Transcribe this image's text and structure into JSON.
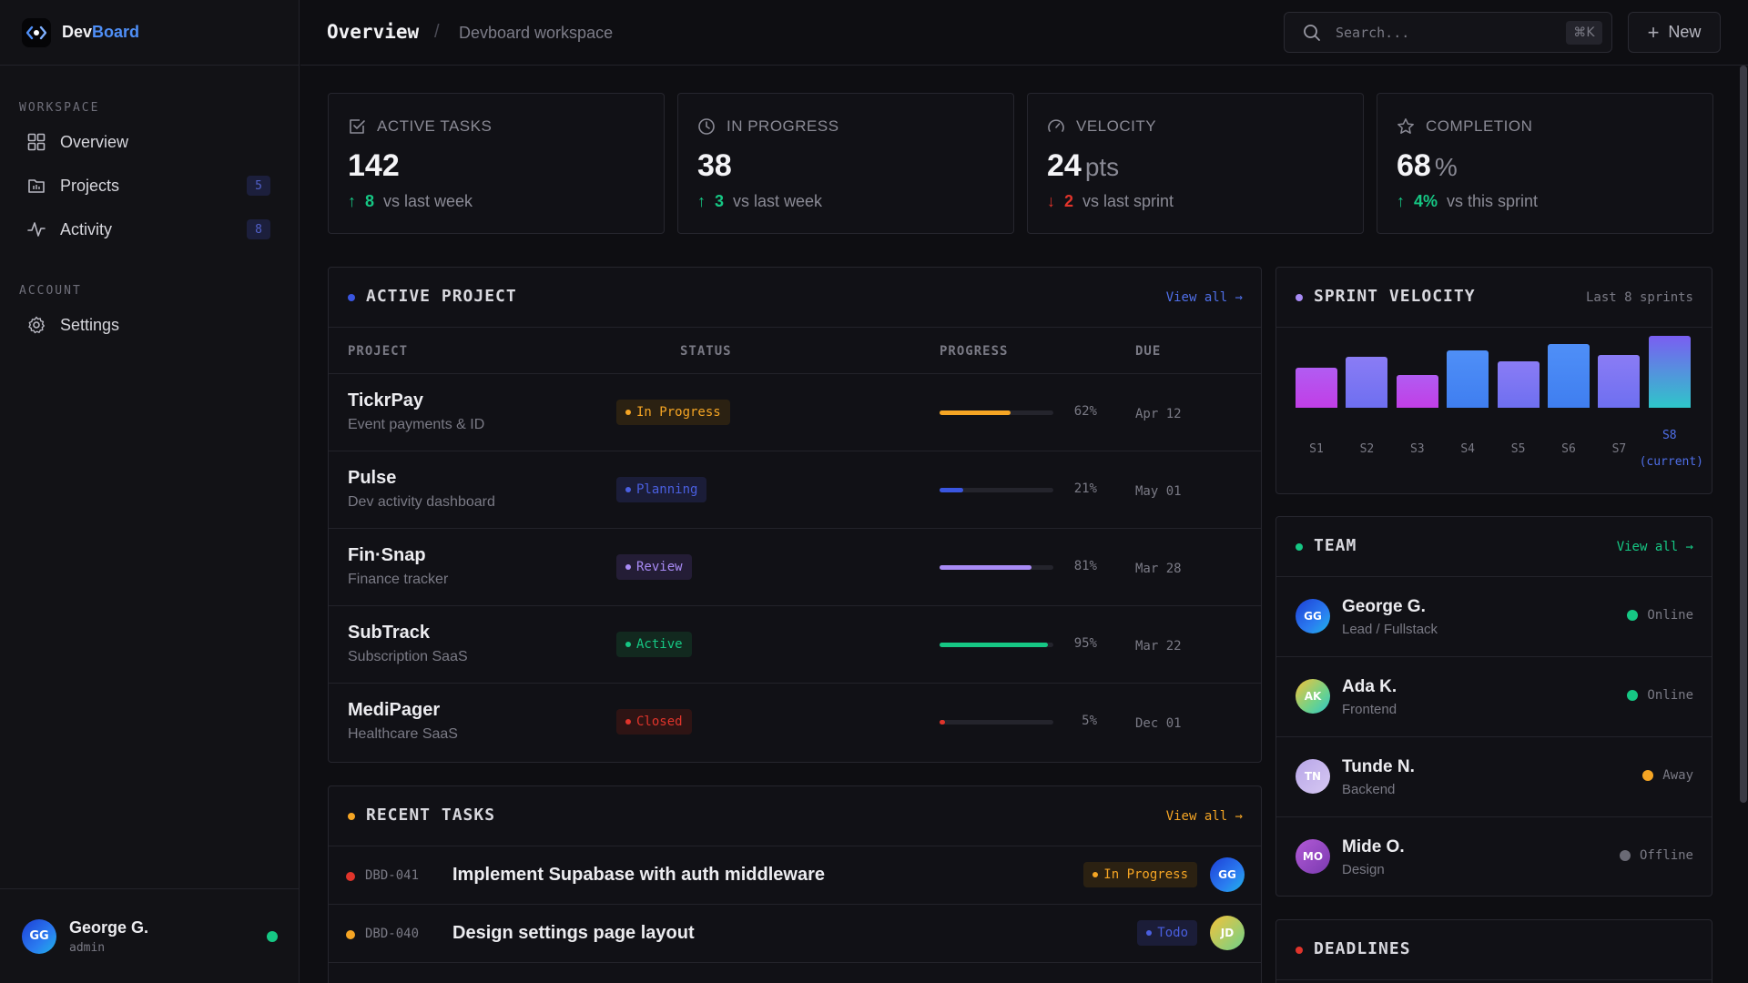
{
  "brand": {
    "name_part1": "Dev",
    "name_part2": "Board",
    "accent": "#4f8ff7"
  },
  "sidebar": {
    "workspace_label": "WORKSPACE",
    "account_label": "ACCOUNT",
    "items": [
      {
        "label": "Overview",
        "icon": "grid-icon"
      },
      {
        "label": "Projects",
        "icon": "folder-icon",
        "badge": "5"
      },
      {
        "label": "Activity",
        "icon": "activity-icon",
        "badge": "8"
      }
    ],
    "account_items": [
      {
        "label": "Settings",
        "icon": "gear-icon"
      }
    ],
    "user": {
      "initials": "GG",
      "name": "George G.",
      "role": "admin",
      "status_color": "#16c784"
    }
  },
  "header": {
    "title": "Overview",
    "separator": "/",
    "breadcrumb": "Devboard workspace",
    "search_placeholder": "Search...",
    "search_shortcut": "⌘K",
    "new_label": "New"
  },
  "stats": [
    {
      "label": "ACTIVE TASKS",
      "value": "142",
      "unit": "",
      "delta": "8",
      "direction": "up",
      "suffix": "vs last week",
      "icon": "checkbox-icon"
    },
    {
      "label": "IN PROGRESS",
      "value": "38",
      "unit": "",
      "delta": "3",
      "direction": "up",
      "suffix": "vs last week",
      "icon": "clock-icon"
    },
    {
      "label": "VELOCITY",
      "value": "24",
      "unit": "pts",
      "delta": "2",
      "direction": "down",
      "suffix": "vs last sprint",
      "icon": "gauge-icon"
    },
    {
      "label": "COMPLETION",
      "value": "68",
      "unit": "%",
      "delta": "4%",
      "direction": "up",
      "suffix": "vs this sprint",
      "icon": "star-icon"
    }
  ],
  "projects": {
    "title": "ACTIVE PROJECT",
    "view_all": "View all →",
    "columns": [
      "PROJECT",
      "STATUS",
      "PROGRESS",
      "DUE"
    ],
    "rows": [
      {
        "name": "TickrPay",
        "desc": "Event payments & ID",
        "status": "In Progress",
        "status_color": "#f5a524",
        "status_bg": "#2b2112",
        "progress": 62,
        "progress_label": "62%",
        "bar_color": "#f5a524",
        "due": "Apr 12"
      },
      {
        "name": "Pulse",
        "desc": "Dev activity dashboard",
        "status": "Planning",
        "status_color": "#4a5fe0",
        "status_bg": "#1b1d38",
        "progress": 21,
        "progress_label": "21%",
        "bar_color": "#3a56e0",
        "due": "May 01"
      },
      {
        "name": "Fin·Snap",
        "desc": "Finance tracker",
        "status": "Review",
        "status_color": "#a88bf5",
        "status_bg": "#241d36",
        "progress": 81,
        "progress_label": "81%",
        "bar_color": "#a88bf5",
        "due": "Mar 28"
      },
      {
        "name": "SubTrack",
        "desc": "Subscription SaaS",
        "status": "Active",
        "status_color": "#16c784",
        "status_bg": "#12291f",
        "progress": 95,
        "progress_label": "95%",
        "bar_color": "#16c784",
        "due": "Mar 22"
      },
      {
        "name": "MediPager",
        "desc": "Healthcare SaaS",
        "status": "Closed",
        "status_color": "#e0342b",
        "status_bg": "#2e1414",
        "progress": 5,
        "progress_label": "5%",
        "bar_color": "#e0342b",
        "due": "Dec 01"
      }
    ]
  },
  "tasks": {
    "title": "RECENT TASKS",
    "view_all": "View all →",
    "rows": [
      {
        "id": "DBD-041",
        "title": "Implement Supabase with auth middleware",
        "dot": "#e0342b",
        "status": "In Progress",
        "status_color": "#f5a524",
        "status_bg": "#2b2112",
        "assignee": "GG"
      },
      {
        "id": "DBD-040",
        "title": "Design settings page layout",
        "dot": "#f5a524",
        "status": "Todo",
        "status_color": "#4a5fe0",
        "status_bg": "#1b1d38",
        "assignee": "JD"
      }
    ]
  },
  "velocity": {
    "title": "SPRINT VELOCITY",
    "subtitle": "Last 8 sprints",
    "chart_data": {
      "type": "bar",
      "categories": [
        "S1",
        "S2",
        "S3",
        "S4",
        "S5",
        "S6",
        "S7",
        "S8"
      ],
      "values": [
        44,
        56,
        36,
        63,
        51,
        70,
        58,
        79
      ],
      "current_label": "(current)"
    }
  },
  "team": {
    "title": "TEAM",
    "view_all": "View all →",
    "members": [
      {
        "initials": "GG",
        "name": "George G.",
        "role": "Lead / Fullstack",
        "status": "Online",
        "status_color": "#16c784"
      },
      {
        "initials": "AK",
        "name": "Ada K.",
        "role": "Frontend",
        "status": "Online",
        "status_color": "#16c784"
      },
      {
        "initials": "TN",
        "name": "Tunde N.",
        "role": "Backend",
        "status": "Away",
        "status_color": "#f5a524"
      },
      {
        "initials": "MO",
        "name": "Mide O.",
        "role": "Design",
        "status": "Offline",
        "status_color": "#6a6a75"
      }
    ]
  },
  "deadlines": {
    "title": "DEADLINES"
  }
}
